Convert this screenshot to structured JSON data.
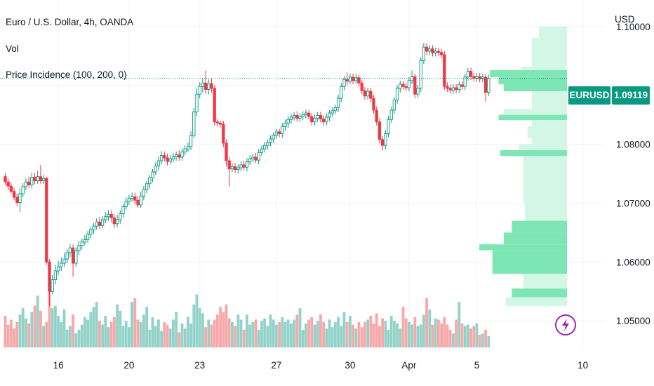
{
  "legend": {
    "title": "Euro / U.S. Dollar, 4h, OANDA",
    "vol": "Vol",
    "indicator": "Price Incidence (100, 200, 0)"
  },
  "currency": "USD",
  "symbol_tag": "EURUSD",
  "price_tag": "1.09119",
  "colors": {
    "up": "#089981",
    "down": "#f23645",
    "vol_up": "#92d2c9",
    "vol_down": "#f7a8a8",
    "profile_strong": "#7ee6b4",
    "profile_light": "#d2f7e6",
    "grid": "#f0f3fa",
    "price_line": "#089981"
  },
  "icons": {
    "lightning": "lightning-icon"
  },
  "chart_data": {
    "type": "candlestick",
    "y_axis": {
      "ticks": [
        1.05,
        1.06,
        1.07,
        1.08,
        1.09,
        1.1
      ],
      "tick_labels": [
        "1.05000",
        "1.06000",
        "1.07000",
        "1.08000",
        "",
        "1.10000"
      ],
      "range": [
        1.0455,
        1.1045
      ]
    },
    "x_axis": {
      "ticks": [
        {
          "bar": 18,
          "label": "16"
        },
        {
          "bar": 42,
          "label": "20"
        },
        {
          "bar": 66,
          "label": "23"
        },
        {
          "bar": 92,
          "label": "27"
        },
        {
          "bar": 117,
          "label": "30"
        },
        {
          "bar": 137,
          "label": "Apr"
        },
        {
          "bar": 160,
          "label": "5"
        },
        {
          "bar": 196,
          "label": "10"
        }
      ]
    },
    "last_price": 1.09119,
    "candles": [
      [
        1.0745,
        1.0736,
        1.0751,
        1.073
      ],
      [
        1.0736,
        1.0729,
        1.0742,
        1.0722
      ],
      [
        1.0729,
        1.072,
        1.0735,
        1.0716
      ],
      [
        1.072,
        1.071,
        1.0726,
        1.0705
      ],
      [
        1.071,
        1.0701,
        1.0716,
        1.0695
      ],
      [
        1.0701,
        1.0716,
        1.0725,
        1.0685
      ],
      [
        1.0716,
        1.0728,
        1.0734,
        1.071
      ],
      [
        1.0728,
        1.0736,
        1.0742,
        1.0722
      ],
      [
        1.0736,
        1.0731,
        1.0745,
        1.0726
      ],
      [
        1.0731,
        1.0744,
        1.0752,
        1.0725
      ],
      [
        1.0744,
        1.0738,
        1.0752,
        1.0732
      ],
      [
        1.0738,
        1.0745,
        1.0755,
        1.0733
      ],
      [
        1.0745,
        1.0738,
        1.0765,
        1.0733
      ],
      [
        1.0738,
        1.0742,
        1.0748,
        1.0732
      ],
      [
        1.0742,
        1.06,
        1.0745,
        1.0595
      ],
      [
        1.06,
        1.055,
        1.0605,
        1.0525
      ],
      [
        1.055,
        1.057,
        1.0578,
        1.0545
      ],
      [
        1.057,
        1.0585,
        1.0595,
        1.0562
      ],
      [
        1.0585,
        1.0592,
        1.0602,
        1.0578
      ],
      [
        1.0592,
        1.0598,
        1.0608,
        1.0585
      ],
      [
        1.0598,
        1.0605,
        1.0615,
        1.0592
      ],
      [
        1.0605,
        1.0616,
        1.0622,
        1.0598
      ],
      [
        1.0616,
        1.0624,
        1.063,
        1.0608
      ],
      [
        1.0624,
        1.0598,
        1.063,
        1.0575
      ],
      [
        1.0598,
        1.0619,
        1.0625,
        1.0592
      ],
      [
        1.0619,
        1.0628,
        1.0636,
        1.0612
      ],
      [
        1.0628,
        1.0634,
        1.064,
        1.0622
      ],
      [
        1.0634,
        1.0638,
        1.0646,
        1.0628
      ],
      [
        1.0638,
        1.0647,
        1.0653,
        1.0632
      ],
      [
        1.0647,
        1.0655,
        1.066,
        1.064
      ],
      [
        1.0655,
        1.0661,
        1.0666,
        1.0648
      ],
      [
        1.0661,
        1.0668,
        1.0674,
        1.0655
      ],
      [
        1.0668,
        1.0662,
        1.0676,
        1.0655
      ],
      [
        1.0662,
        1.0672,
        1.0678,
        1.0656
      ],
      [
        1.0672,
        1.0677,
        1.0685,
        1.0666
      ],
      [
        1.0677,
        1.0681,
        1.0688,
        1.067
      ],
      [
        1.0681,
        1.0675,
        1.0688,
        1.0668
      ],
      [
        1.0675,
        1.0665,
        1.0681,
        1.0658
      ],
      [
        1.0665,
        1.0672,
        1.068,
        1.0659
      ],
      [
        1.0672,
        1.0682,
        1.0688,
        1.0665
      ],
      [
        1.0682,
        1.0694,
        1.0699,
        1.0675
      ],
      [
        1.0694,
        1.0703,
        1.071,
        1.0689
      ],
      [
        1.0703,
        1.0708,
        1.0714,
        1.0697
      ],
      [
        1.0708,
        1.0711,
        1.0718,
        1.0702
      ],
      [
        1.0711,
        1.0705,
        1.0718,
        1.0698
      ],
      [
        1.0705,
        1.0697,
        1.0712,
        1.0692
      ],
      [
        1.0697,
        1.0712,
        1.072,
        1.0692
      ],
      [
        1.0712,
        1.0723,
        1.0729,
        1.0705
      ],
      [
        1.0723,
        1.0733,
        1.0738,
        1.0717
      ],
      [
        1.0733,
        1.0743,
        1.0748,
        1.0725
      ],
      [
        1.0743,
        1.0753,
        1.0758,
        1.0736
      ],
      [
        1.0753,
        1.0763,
        1.0769,
        1.0748
      ],
      [
        1.0763,
        1.0772,
        1.0779,
        1.0756
      ],
      [
        1.0772,
        1.0781,
        1.0788,
        1.0766
      ],
      [
        1.0781,
        1.0777,
        1.0788,
        1.0771
      ],
      [
        1.0777,
        1.0771,
        1.0784,
        1.0764
      ],
      [
        1.0771,
        1.0775,
        1.0782,
        1.0766
      ],
      [
        1.0775,
        1.0779,
        1.0785,
        1.0769
      ],
      [
        1.0779,
        1.0782,
        1.0788,
        1.0772
      ],
      [
        1.0782,
        1.0778,
        1.079,
        1.0772
      ],
      [
        1.0778,
        1.0787,
        1.0793,
        1.0772
      ],
      [
        1.0787,
        1.0792,
        1.0798,
        1.0781
      ],
      [
        1.0792,
        1.0796,
        1.0803,
        1.0787
      ],
      [
        1.0796,
        1.0815,
        1.0822,
        1.079
      ],
      [
        1.0815,
        1.0855,
        1.0862,
        1.081
      ],
      [
        1.0855,
        1.0885,
        1.0895,
        1.0848
      ],
      [
        1.0885,
        1.0898,
        1.0905,
        1.0878
      ],
      [
        1.0898,
        1.0904,
        1.0912,
        1.0888
      ],
      [
        1.0904,
        1.0893,
        1.0925,
        1.0886
      ],
      [
        1.0893,
        1.0903,
        1.091,
        1.0885
      ],
      [
        1.0903,
        1.0895,
        1.0912,
        1.0888
      ],
      [
        1.0895,
        1.0838,
        1.09,
        1.0832
      ],
      [
        1.0838,
        1.0836,
        1.0843,
        1.083
      ],
      [
        1.0836,
        1.0834,
        1.084,
        1.0828
      ],
      [
        1.0834,
        1.0802,
        1.084,
        1.0795
      ],
      [
        1.0802,
        1.0772,
        1.0808,
        1.0762
      ],
      [
        1.0772,
        1.0758,
        1.0778,
        1.0728
      ],
      [
        1.0758,
        1.0762,
        1.0768,
        1.0753
      ],
      [
        1.0762,
        1.0757,
        1.0768,
        1.0751
      ],
      [
        1.0757,
        1.076,
        1.0766,
        1.075
      ],
      [
        1.076,
        1.0765,
        1.0771,
        1.0754
      ],
      [
        1.0765,
        1.0761,
        1.0772,
        1.0756
      ],
      [
        1.0761,
        1.077,
        1.0776,
        1.0754
      ],
      [
        1.077,
        1.0775,
        1.0781,
        1.0764
      ],
      [
        1.0775,
        1.0778,
        1.0784,
        1.077
      ],
      [
        1.0778,
        1.0773,
        1.0785,
        1.0768
      ],
      [
        1.0773,
        1.0786,
        1.0792,
        1.0766
      ],
      [
        1.0786,
        1.0792,
        1.0798,
        1.078
      ],
      [
        1.0792,
        1.0798,
        1.0804,
        1.0786
      ],
      [
        1.0798,
        1.0803,
        1.0808,
        1.0791
      ],
      [
        1.0803,
        1.0809,
        1.0815,
        1.0797
      ],
      [
        1.0809,
        1.0815,
        1.082,
        1.0802
      ],
      [
        1.0815,
        1.0821,
        1.0826,
        1.0809
      ],
      [
        1.0821,
        1.0818,
        1.0826,
        1.0812
      ],
      [
        1.0818,
        1.083,
        1.0836,
        1.0811
      ],
      [
        1.083,
        1.0836,
        1.0842,
        1.0823
      ],
      [
        1.0836,
        1.0842,
        1.0848,
        1.0828
      ],
      [
        1.0842,
        1.0846,
        1.0852,
        1.0835
      ],
      [
        1.0846,
        1.0849,
        1.0855,
        1.084
      ],
      [
        1.0849,
        1.0844,
        1.0856,
        1.0838
      ],
      [
        1.0844,
        1.0847,
        1.0853,
        1.0838
      ],
      [
        1.0847,
        1.085,
        1.0856,
        1.0841
      ],
      [
        1.085,
        1.0853,
        1.0859,
        1.0844
      ],
      [
        1.0853,
        1.0847,
        1.0858,
        1.0842
      ],
      [
        1.0847,
        1.0838,
        1.0853,
        1.0832
      ],
      [
        1.0838,
        1.0844,
        1.085,
        1.0832
      ],
      [
        1.0844,
        1.0849,
        1.0855,
        1.0838
      ],
      [
        1.0849,
        1.0843,
        1.0855,
        1.0837
      ],
      [
        1.0843,
        1.0838,
        1.0849,
        1.0832
      ],
      [
        1.0838,
        1.0846,
        1.0852,
        1.0832
      ],
      [
        1.0846,
        1.0853,
        1.0858,
        1.084
      ],
      [
        1.0853,
        1.0857,
        1.0863,
        1.0847
      ],
      [
        1.0857,
        1.0862,
        1.0867,
        1.0851
      ],
      [
        1.0862,
        1.0878,
        1.0884,
        1.0855
      ],
      [
        1.0878,
        1.0898,
        1.0904,
        1.0872
      ],
      [
        1.0898,
        1.091,
        1.0916,
        1.0892
      ],
      [
        1.091,
        1.0907,
        1.0922,
        1.09
      ],
      [
        1.0907,
        1.0914,
        1.092,
        1.0902
      ],
      [
        1.0914,
        1.0908,
        1.092,
        1.0902
      ],
      [
        1.0908,
        1.0913,
        1.092,
        1.0902
      ],
      [
        1.0913,
        1.0904,
        1.0918,
        1.0898
      ],
      [
        1.0904,
        1.0891,
        1.091,
        1.0885
      ],
      [
        1.0891,
        1.0882,
        1.0897,
        1.0876
      ],
      [
        1.0882,
        1.089,
        1.0896,
        1.0876
      ],
      [
        1.089,
        1.0878,
        1.0896,
        1.0872
      ],
      [
        1.0878,
        1.0858,
        1.0884,
        1.0852
      ],
      [
        1.0858,
        1.0838,
        1.0864,
        1.0832
      ],
      [
        1.0838,
        1.0808,
        1.0844,
        1.0802
      ],
      [
        1.0808,
        1.0798,
        1.0814,
        1.0789
      ],
      [
        1.0798,
        1.0818,
        1.0824,
        1.0791
      ],
      [
        1.0818,
        1.0842,
        1.0848,
        1.0812
      ],
      [
        1.0842,
        1.0858,
        1.0864,
        1.0836
      ],
      [
        1.0858,
        1.0875,
        1.088,
        1.0852
      ],
      [
        1.0875,
        1.0895,
        1.09,
        1.0869
      ],
      [
        1.0895,
        1.0902,
        1.0908,
        1.0888
      ],
      [
        1.0902,
        1.0898,
        1.0908,
        1.0892
      ],
      [
        1.0898,
        1.0896,
        1.0904,
        1.089
      ],
      [
        1.0896,
        1.0908,
        1.0914,
        1.089
      ],
      [
        1.0908,
        1.0915,
        1.0925,
        1.0902
      ],
      [
        1.0915,
        1.0885,
        1.092,
        1.0878
      ],
      [
        1.0885,
        1.0895,
        1.0901,
        1.0879
      ],
      [
        1.0895,
        1.0942,
        1.0948,
        1.0889
      ],
      [
        1.0942,
        1.0965,
        1.0972,
        1.0936
      ],
      [
        1.0965,
        1.0958,
        1.0972,
        1.0952
      ],
      [
        1.0958,
        1.0962,
        1.0968,
        1.0952
      ],
      [
        1.0962,
        1.0955,
        1.0968,
        1.0949
      ],
      [
        1.0955,
        1.0958,
        1.0964,
        1.0949
      ],
      [
        1.0958,
        1.0956,
        1.0964,
        1.095
      ],
      [
        1.0956,
        1.0952,
        1.0962,
        1.0946
      ],
      [
        1.0952,
        1.0898,
        1.0958,
        1.0892
      ],
      [
        1.0898,
        1.0895,
        1.0905,
        1.0889
      ],
      [
        1.0895,
        1.0892,
        1.0901,
        1.0886
      ],
      [
        1.0892,
        1.0896,
        1.0902,
        1.0886
      ],
      [
        1.0896,
        1.0893,
        1.0902,
        1.0887
      ],
      [
        1.0893,
        1.0901,
        1.0907,
        1.0887
      ],
      [
        1.0901,
        1.0898,
        1.0907,
        1.0892
      ],
      [
        1.0898,
        1.0914,
        1.092,
        1.0892
      ],
      [
        1.0914,
        1.0924,
        1.093,
        1.0908
      ],
      [
        1.0924,
        1.0915,
        1.093,
        1.0909
      ],
      [
        1.0915,
        1.0912,
        1.0921,
        1.0906
      ],
      [
        1.0912,
        1.0915,
        1.0921,
        1.0906
      ],
      [
        1.0915,
        1.0911,
        1.0921,
        1.0905
      ],
      [
        1.0911,
        1.0914,
        1.092,
        1.0905
      ],
      [
        1.0914,
        1.0888,
        1.092,
        1.0872
      ],
      [
        1.0888,
        1.0912,
        1.0918,
        1.0882
      ]
    ],
    "volumes": [
      0.25,
      0.18,
      0.22,
      0.15,
      0.2,
      0.26,
      0.31,
      0.23,
      0.19,
      0.28,
      0.33,
      0.41,
      0.29,
      0.17,
      0.2,
      0.56,
      0.31,
      0.33,
      0.25,
      0.2,
      0.3,
      0.14,
      0.17,
      0.26,
      0.11,
      0.14,
      0.18,
      0.24,
      0.22,
      0.28,
      0.32,
      0.36,
      0.21,
      0.18,
      0.25,
      0.16,
      0.2,
      0.24,
      0.34,
      0.29,
      0.17,
      0.21,
      0.16,
      0.36,
      0.39,
      0.22,
      0.2,
      0.26,
      0.32,
      0.14,
      0.24,
      0.17,
      0.22,
      0.13,
      0.2,
      0.18,
      0.15,
      0.22,
      0.28,
      0.12,
      0.19,
      0.15,
      0.24,
      0.19,
      0.34,
      0.42,
      0.31,
      0.27,
      0.16,
      0.22,
      0.18,
      0.22,
      0.26,
      0.32,
      0.28,
      0.34,
      0.23,
      0.2,
      0.17,
      0.26,
      0.22,
      0.14,
      0.26,
      0.18,
      0.2,
      0.22,
      0.14,
      0.21,
      0.23,
      0.17,
      0.26,
      0.22,
      0.18,
      0.2,
      0.24,
      0.2,
      0.22,
      0.19,
      0.22,
      0.26,
      0.31,
      0.14,
      0.19,
      0.22,
      0.24,
      0.18,
      0.21,
      0.26,
      0.2,
      0.15,
      0.22,
      0.16,
      0.2,
      0.24,
      0.17,
      0.28,
      0.2,
      0.25,
      0.18,
      0.15,
      0.2,
      0.16,
      0.2,
      0.22,
      0.25,
      0.19,
      0.27,
      0.17,
      0.23,
      0.21,
      0.14,
      0.25,
      0.21,
      0.19,
      0.15,
      0.32,
      0.23,
      0.2,
      0.18,
      0.24,
      0.17,
      0.18,
      0.26,
      0.39,
      0.3,
      0.18,
      0.23,
      0.22,
      0.19,
      0.24,
      0.18,
      0.14,
      0.11,
      0.22,
      0.36,
      0.19,
      0.17,
      0.18,
      0.15,
      0.17,
      0.19,
      0.1,
      0.11,
      0.14,
      0.09,
      0.12,
      0.08,
      0.09,
      0.1,
      0.06,
      0.07
    ],
    "price_profile": [
      {
        "from": 1.1,
        "to": 1.0981,
        "value": 0.32,
        "strong": false
      },
      {
        "from": 1.0981,
        "to": 1.0932,
        "value": 0.4,
        "strong": false
      },
      {
        "from": 1.0932,
        "to": 1.0926,
        "value": 0.52,
        "strong": false
      },
      {
        "from": 1.0926,
        "to": 1.0914,
        "value": 0.88,
        "strong": true
      },
      {
        "from": 1.0914,
        "to": 1.0902,
        "value": 0.78,
        "strong": true
      },
      {
        "from": 1.0902,
        "to": 1.089,
        "value": 0.72,
        "strong": true
      },
      {
        "from": 1.089,
        "to": 1.086,
        "value": 0.4,
        "strong": false
      },
      {
        "from": 1.086,
        "to": 1.085,
        "value": 0.72,
        "strong": false
      },
      {
        "from": 1.085,
        "to": 1.0841,
        "value": 0.78,
        "strong": true
      },
      {
        "from": 1.0841,
        "to": 1.083,
        "value": 0.4,
        "strong": false
      },
      {
        "from": 1.083,
        "to": 1.081,
        "value": 0.45,
        "strong": false
      },
      {
        "from": 1.081,
        "to": 1.08,
        "value": 0.4,
        "strong": false
      },
      {
        "from": 1.08,
        "to": 1.079,
        "value": 0.55,
        "strong": false
      },
      {
        "from": 1.079,
        "to": 1.078,
        "value": 0.76,
        "strong": true
      },
      {
        "from": 1.078,
        "to": 1.07,
        "value": 0.5,
        "strong": false
      },
      {
        "from": 1.07,
        "to": 1.067,
        "value": 0.48,
        "strong": false
      },
      {
        "from": 1.067,
        "to": 1.065,
        "value": 0.63,
        "strong": true
      },
      {
        "from": 1.065,
        "to": 1.063,
        "value": 0.72,
        "strong": true
      },
      {
        "from": 1.063,
        "to": 1.062,
        "value": 1.0,
        "strong": true
      },
      {
        "from": 1.062,
        "to": 1.058,
        "value": 0.85,
        "strong": true
      },
      {
        "from": 1.058,
        "to": 1.0555,
        "value": 0.5,
        "strong": false
      },
      {
        "from": 1.0555,
        "to": 1.054,
        "value": 0.63,
        "strong": true
      },
      {
        "from": 1.054,
        "to": 1.0525,
        "value": 0.7,
        "strong": false
      }
    ]
  }
}
